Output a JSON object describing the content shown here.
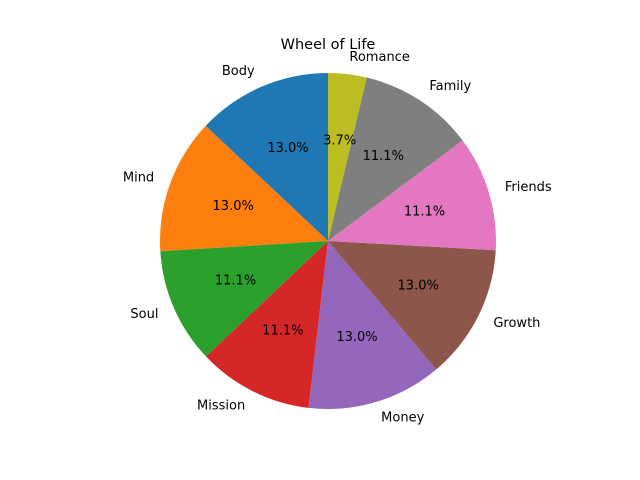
{
  "chart_data": {
    "type": "pie",
    "title": "Wheel of Life",
    "categories": [
      "Body",
      "Mind",
      "Soul",
      "Mission",
      "Money",
      "Growth",
      "Friends",
      "Family",
      "Romance"
    ],
    "values": [
      13.0,
      13.0,
      11.1,
      11.1,
      13.0,
      13.0,
      11.1,
      11.1,
      3.7
    ],
    "labels_pct": [
      "13.0%",
      "13.0%",
      "11.1%",
      "11.1%",
      "13.0%",
      "13.0%",
      "11.1%",
      "11.1%",
      "3.7%"
    ],
    "colors": [
      "#1f77b4",
      "#ff7f0e",
      "#2ca02c",
      "#d62728",
      "#9467bd",
      "#8c564b",
      "#e377c2",
      "#7f7f7f",
      "#bcbd22"
    ],
    "start_angle_deg": 90,
    "direction": "counterclockwise",
    "legend": "none"
  }
}
